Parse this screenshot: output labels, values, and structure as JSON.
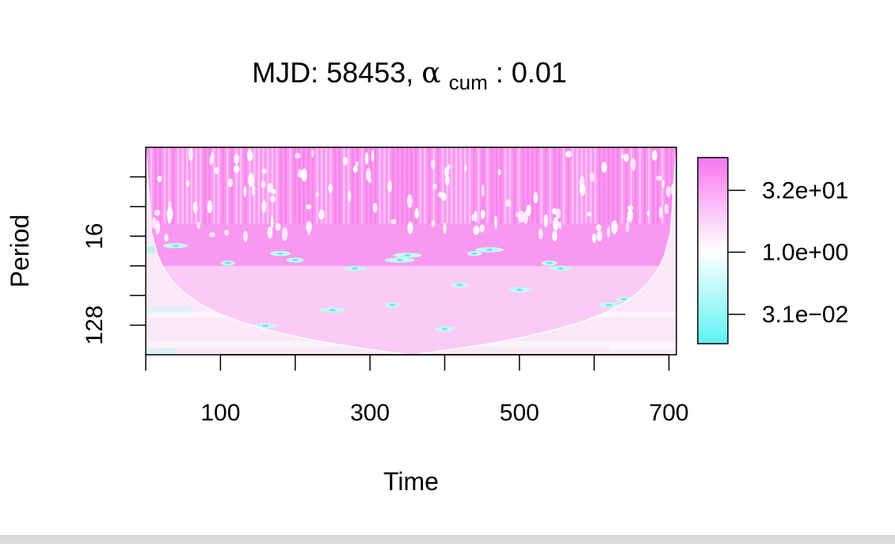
{
  "chart_data": {
    "type": "heatmap",
    "title": {
      "prefix": "MJD: 58453, ",
      "symbol": "α",
      "subscript": "cum",
      "suffix": ": 0.01"
    },
    "xlabel": "Time",
    "ylabel": "Period",
    "xlim": [
      0,
      710
    ],
    "x_ticks": [
      0,
      100,
      200,
      300,
      400,
      500,
      600,
      700
    ],
    "x_tick_labels": [
      "100",
      "300",
      "500",
      "700"
    ],
    "x_tick_label_values": [
      100,
      300,
      500,
      700
    ],
    "y_scale": "log2",
    "ylim": [
      2,
      256
    ],
    "y_ticks": [
      4,
      8,
      16,
      32,
      64,
      128
    ],
    "y_tick_labels": [
      "16",
      "128"
    ],
    "y_tick_label_values": [
      16,
      128
    ],
    "y_axis_reversed": true,
    "colorbar": {
      "scale": "log",
      "range": [
        0.006,
        200
      ],
      "tick_labels": [
        "3.2e+01",
        "1.0e+00",
        "3.1e−02"
      ],
      "tick_values": [
        32,
        1,
        0.031
      ],
      "low_color": "#5ff2f2",
      "mid_color": "#ffffff",
      "high_color": "#f776ee"
    },
    "cone_of_influence": true,
    "colors": {
      "pink": "#f776ee",
      "cyan": "#5ff2f2",
      "axis": "#000000"
    }
  }
}
